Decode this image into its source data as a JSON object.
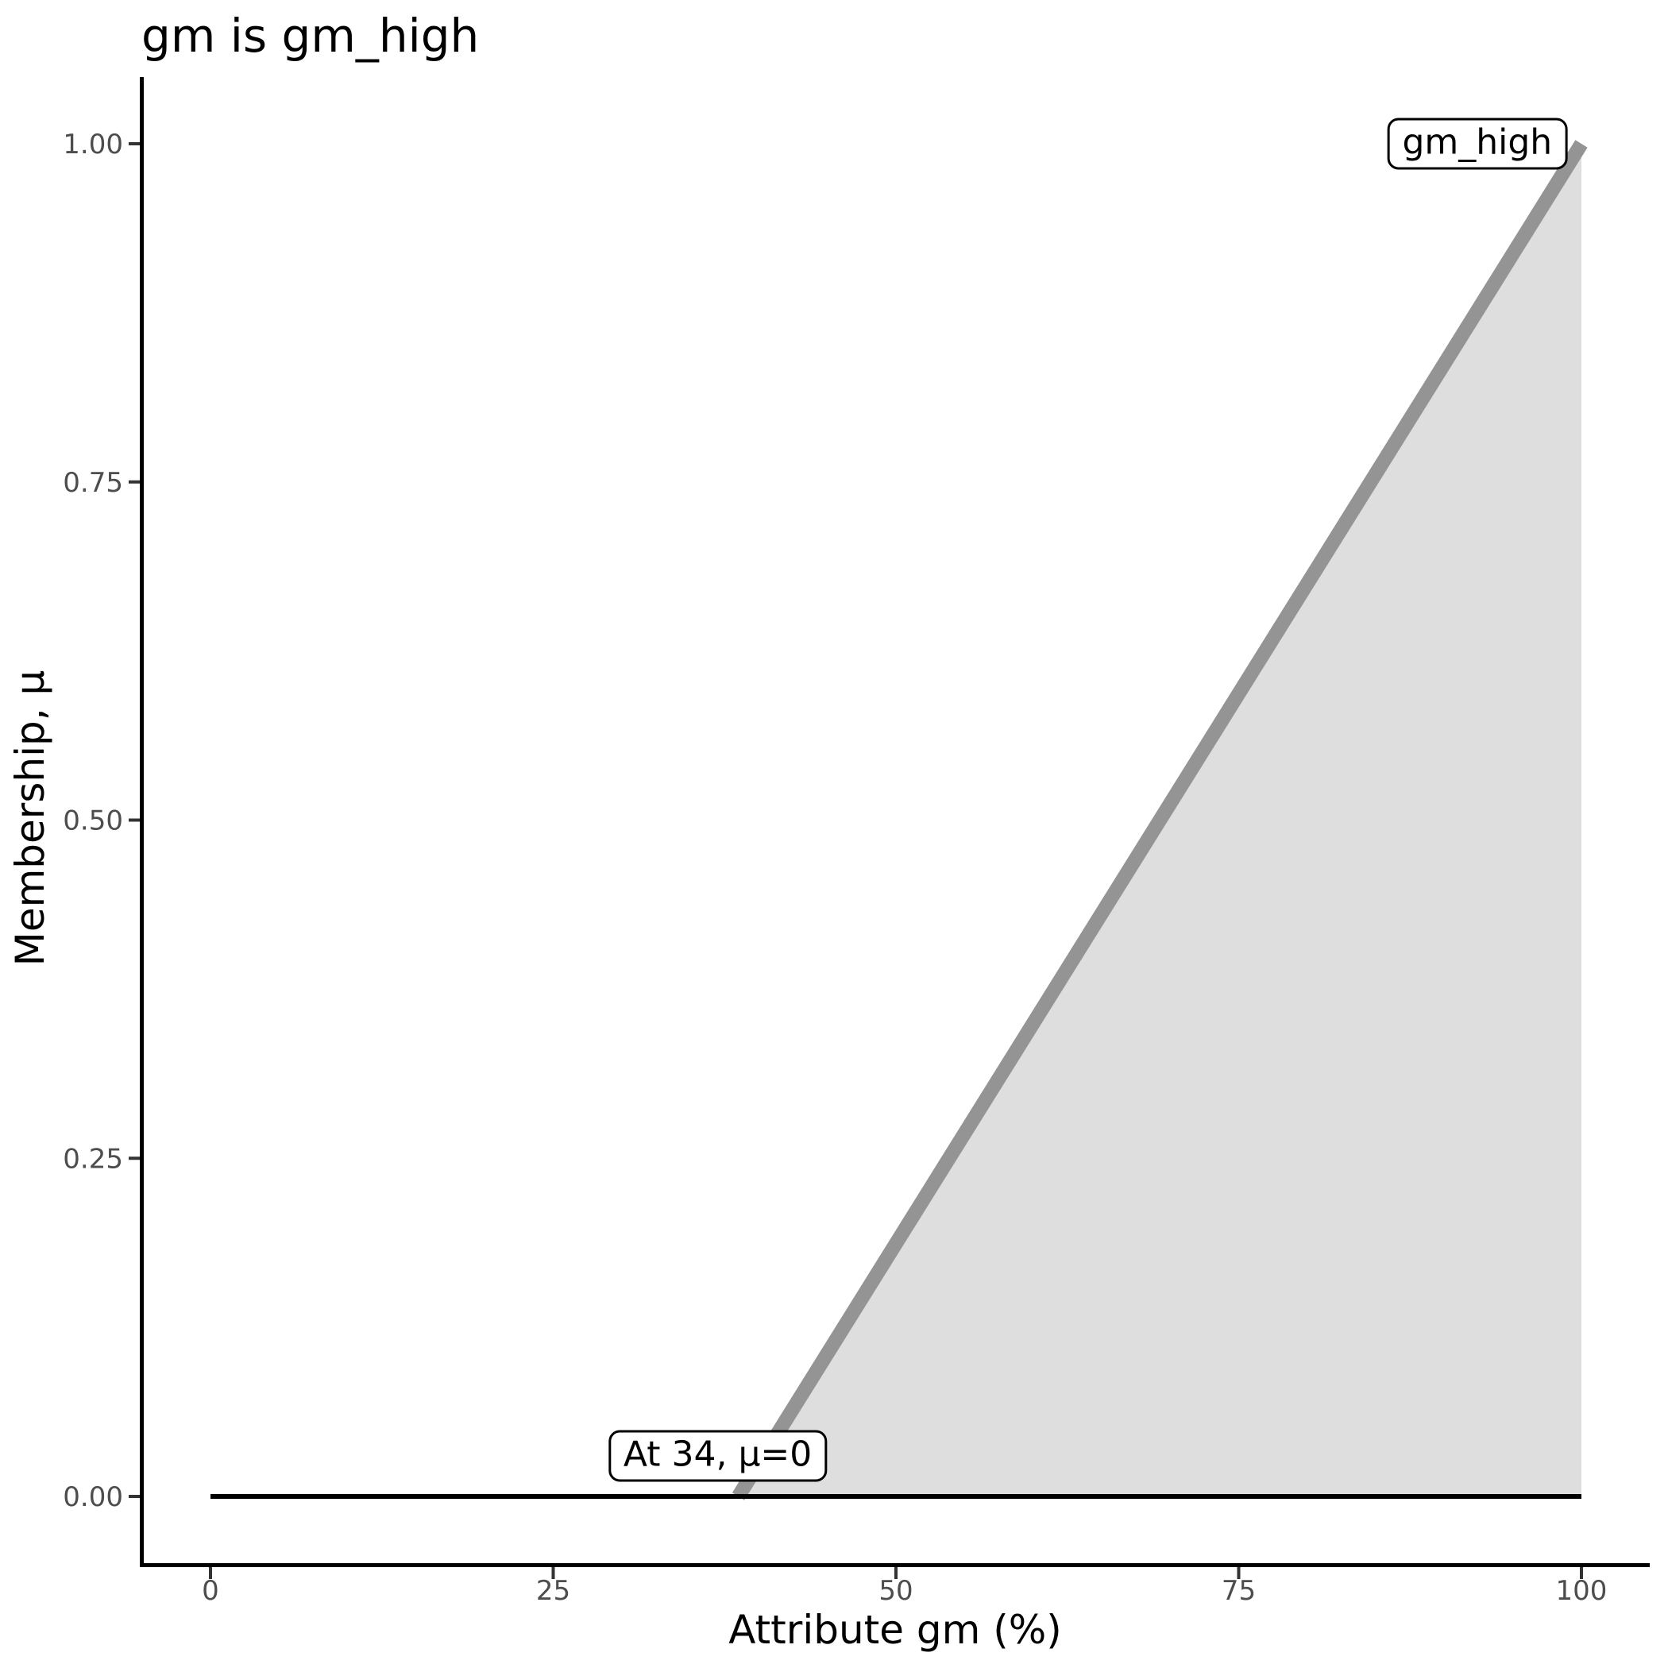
{
  "chart_data": {
    "type": "area",
    "title": "gm is gm_high",
    "xlabel": "Attribute gm (%)",
    "ylabel": "Membership, μ",
    "xlim": [
      0,
      100
    ],
    "ylim": [
      0,
      1
    ],
    "grid": false,
    "legend": "none",
    "x_ticks": {
      "values": [
        0,
        25,
        50,
        75,
        100
      ],
      "labels": [
        "0",
        "25",
        "50",
        "75",
        "100"
      ]
    },
    "y_ticks": {
      "values": [
        0,
        0.25,
        0.5,
        0.75,
        1
      ],
      "labels": [
        "0.00",
        "0.25",
        "0.50",
        "0.75",
        "1.00"
      ]
    },
    "series": [
      {
        "name": "zero_baseline",
        "type": "line",
        "color": "#000000",
        "points": [
          [
            0,
            0
          ],
          [
            100,
            0
          ]
        ]
      },
      {
        "name": "gm_high_membership",
        "type": "area",
        "line_color": "#949494",
        "fill_color": "#DEDEDE",
        "points": [
          [
            38.5,
            0
          ],
          [
            100,
            1
          ]
        ],
        "fill_baseline_y": 0,
        "fill_right_x": 100
      }
    ],
    "annotations": [
      {
        "text": "gm_high",
        "x": 92.4,
        "y": 1.0
      },
      {
        "text": "At 34, μ=0",
        "x": 37,
        "y": 0.03
      }
    ]
  },
  "colors": {
    "background": "#FFFFFF",
    "axis_line": "#000000",
    "tick_mark": "#333333",
    "tick_label": "#4D4D4D",
    "ramp_line": "#949494",
    "area_fill": "#DEDEDE",
    "annotation_border": "#000000",
    "annotation_background": "#FFFFFF"
  }
}
